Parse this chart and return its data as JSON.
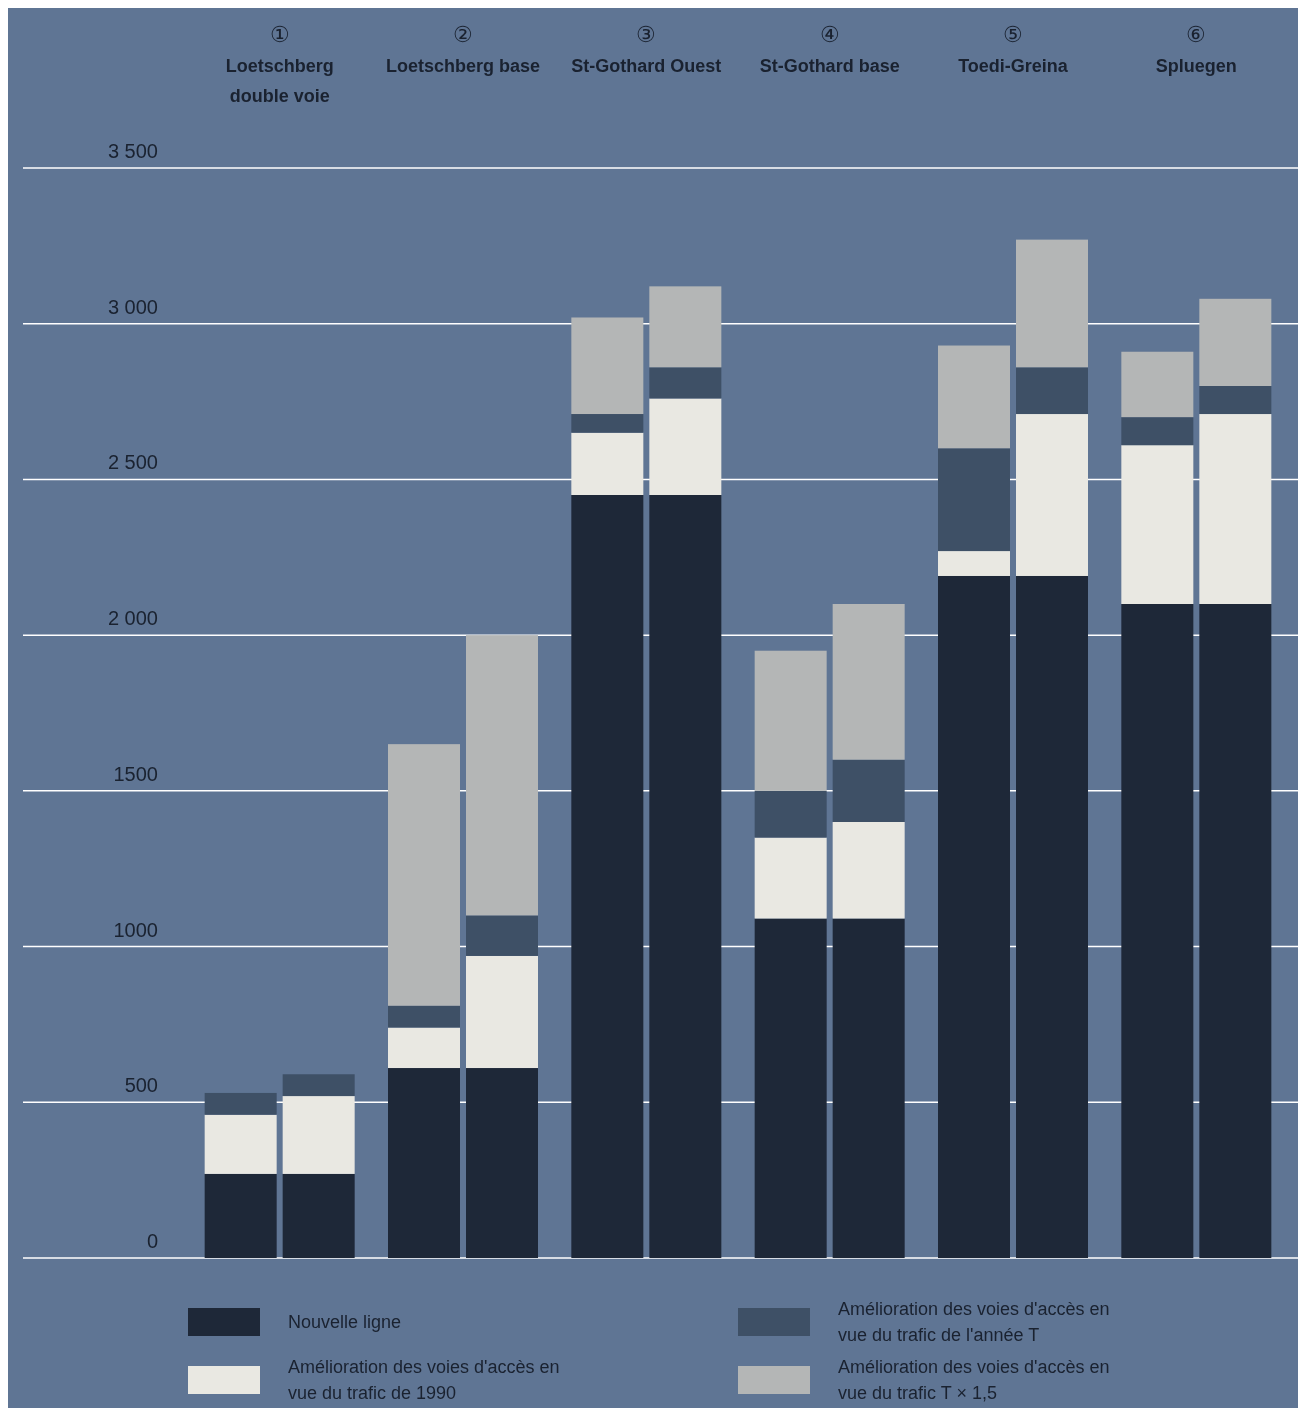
{
  "chart_data": {
    "type": "bar",
    "stacked": true,
    "categories": [
      null,
      null,
      null,
      null,
      null,
      null,
      null,
      null,
      null,
      null,
      null,
      null
    ],
    "annotations": [
      "① Loetschberg double voie",
      "② Loetschberg base",
      "③ St-Gothard Ouest",
      "④ St-Gothard base",
      "⑤ Toedi-Greina",
      "⑥ Spluegen"
    ],
    "series": [
      {
        "name": "Nouvelle ligne",
        "color": "#1e2838",
        "values": [
          270,
          270,
          610,
          610,
          2450,
          2450,
          1090,
          1090,
          2190,
          2190,
          2100,
          2100
        ]
      },
      {
        "name": "Amélioration des voies d'accès en vue du trafic de 1990",
        "color": "#e9e8e2",
        "values": [
          190,
          250,
          130,
          360,
          200,
          310,
          260,
          310,
          80,
          520,
          510,
          610
        ]
      },
      {
        "name": "Amélioration des voies d'accès en vue du trafic de l'année T",
        "color": "#3e5066",
        "values": [
          70,
          70,
          70,
          130,
          60,
          100,
          150,
          200,
          330,
          150,
          90,
          90
        ]
      },
      {
        "name": "Amélioration des voies d'accès en vue du trafic T × 1,5",
        "color": "#b4b6b6",
        "values": [
          0,
          0,
          840,
          900,
          310,
          260,
          450,
          500,
          330,
          410,
          210,
          280
        ]
      }
    ],
    "ylim": [
      0,
      3500
    ],
    "yticks": [
      0,
      500,
      1000,
      1500,
      {
        "value": 2000,
        "label": "2 000"
      },
      {
        "value": 2500,
        "label": "2 500"
      },
      {
        "value": 3000,
        "label": "3 000"
      },
      {
        "value": 3500,
        "label": "3 500"
      }
    ],
    "grid": "y",
    "legend": "bottom"
  }
}
